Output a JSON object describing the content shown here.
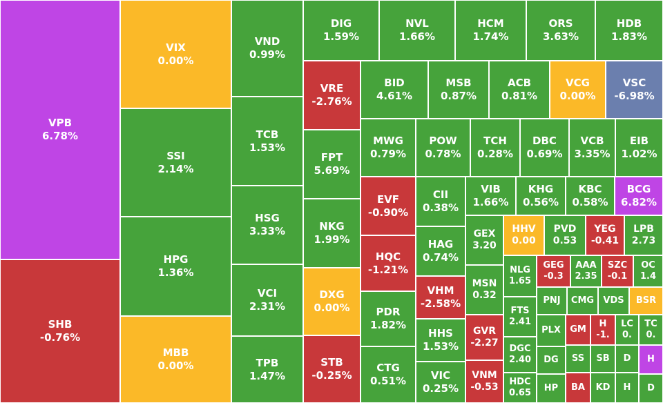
{
  "colors": {
    "up": "#46a33b",
    "down": "#c8383a",
    "ref": "#fbb928",
    "ceiling": "#bf45e5",
    "floor": "#6b7fae"
  },
  "chart_data": {
    "type": "treemap",
    "items": [
      {
        "symbol": "VPB",
        "value": "6.78%",
        "status": "ceiling"
      },
      {
        "symbol": "SHB",
        "value": "-0.76%",
        "status": "down"
      },
      {
        "symbol": "VIX",
        "value": "0.00%",
        "status": "ref"
      },
      {
        "symbol": "SSI",
        "value": "2.14%",
        "status": "up"
      },
      {
        "symbol": "HPG",
        "value": "1.36%",
        "status": "up"
      },
      {
        "symbol": "MBB",
        "value": "0.00%",
        "status": "ref"
      },
      {
        "symbol": "VND",
        "value": "0.99%",
        "status": "up"
      },
      {
        "symbol": "TCB",
        "value": "1.53%",
        "status": "up"
      },
      {
        "symbol": "HSG",
        "value": "3.33%",
        "status": "up"
      },
      {
        "symbol": "VCI",
        "value": "2.31%",
        "status": "up"
      },
      {
        "symbol": "TPB",
        "value": "1.47%",
        "status": "up"
      },
      {
        "symbol": "DIG",
        "value": "1.59%",
        "status": "up"
      },
      {
        "symbol": "NVL",
        "value": "1.66%",
        "status": "up"
      },
      {
        "symbol": "HCM",
        "value": "1.74%",
        "status": "up"
      },
      {
        "symbol": "ORS",
        "value": "3.63%",
        "status": "up"
      },
      {
        "symbol": "HDB",
        "value": "1.83%",
        "status": "up"
      },
      {
        "symbol": "VRE",
        "value": "-2.76%",
        "status": "down"
      },
      {
        "symbol": "FPT",
        "value": "5.69%",
        "status": "up"
      },
      {
        "symbol": "NKG",
        "value": "1.99%",
        "status": "up"
      },
      {
        "symbol": "DXG",
        "value": "0.00%",
        "status": "ref"
      },
      {
        "symbol": "STB",
        "value": "-0.25%",
        "status": "down"
      },
      {
        "symbol": "BID",
        "value": "4.61%",
        "status": "up"
      },
      {
        "symbol": "MSB",
        "value": "0.87%",
        "status": "up"
      },
      {
        "symbol": "ACB",
        "value": "0.81%",
        "status": "up"
      },
      {
        "symbol": "VCG",
        "value": "0.00%",
        "status": "ref"
      },
      {
        "symbol": "VSC",
        "value": "-6.98%",
        "status": "floor"
      },
      {
        "symbol": "MWG",
        "value": "0.79%",
        "status": "up"
      },
      {
        "symbol": "POW",
        "value": "0.78%",
        "status": "up"
      },
      {
        "symbol": "TCH",
        "value": "0.28%",
        "status": "up"
      },
      {
        "symbol": "DBC",
        "value": "0.69%",
        "status": "up"
      },
      {
        "symbol": "VCB",
        "value": "3.35%",
        "status": "up"
      },
      {
        "symbol": "EIB",
        "value": "1.02%",
        "status": "up"
      },
      {
        "symbol": "EVF",
        "value": "-0.90%",
        "status": "down"
      },
      {
        "symbol": "HQC",
        "value": "-1.21%",
        "status": "down"
      },
      {
        "symbol": "PDR",
        "value": "1.82%",
        "status": "up"
      },
      {
        "symbol": "CTG",
        "value": "0.51%",
        "status": "up"
      },
      {
        "symbol": "CII",
        "value": "0.38%",
        "status": "up"
      },
      {
        "symbol": "HAG",
        "value": "0.74%",
        "status": "up"
      },
      {
        "symbol": "VHM",
        "value": "-2.58%",
        "status": "down"
      },
      {
        "symbol": "HHS",
        "value": "1.53%",
        "status": "up"
      },
      {
        "symbol": "VIC",
        "value": "0.25%",
        "status": "up"
      },
      {
        "symbol": "VIB",
        "value": "1.66%",
        "status": "up"
      },
      {
        "symbol": "KHG",
        "value": "0.56%",
        "status": "up"
      },
      {
        "symbol": "KBC",
        "value": "0.58%",
        "status": "up"
      },
      {
        "symbol": "BCG",
        "value": "6.82%",
        "status": "ceiling"
      },
      {
        "symbol": "GEX",
        "value": "3.20",
        "status": "up"
      },
      {
        "symbol": "MSN",
        "value": "0.32",
        "status": "up"
      },
      {
        "symbol": "GVR",
        "value": "-2.27",
        "status": "down"
      },
      {
        "symbol": "VNM",
        "value": "-0.53",
        "status": "down"
      },
      {
        "symbol": "HHV",
        "value": "0.00",
        "status": "ref"
      },
      {
        "symbol": "PVD",
        "value": "0.53",
        "status": "up"
      },
      {
        "symbol": "YEG",
        "value": "-0.41",
        "status": "down"
      },
      {
        "symbol": "LPB",
        "value": "2.73",
        "status": "up"
      },
      {
        "symbol": "NLG",
        "value": "1.65",
        "status": "up"
      },
      {
        "symbol": "FTS",
        "value": "2.41",
        "status": "up"
      },
      {
        "symbol": "DGC",
        "value": "2.40",
        "status": "up"
      },
      {
        "symbol": "HDC",
        "value": "0.65",
        "status": "up"
      },
      {
        "symbol": "GEG",
        "value": "-0.3",
        "status": "down"
      },
      {
        "symbol": "AAA",
        "value": "2.35",
        "status": "up"
      },
      {
        "symbol": "SZC",
        "value": "-0.1",
        "status": "down"
      },
      {
        "symbol": "OC",
        "value": "1.4",
        "status": "up"
      },
      {
        "symbol": "PNJ",
        "value": "",
        "status": "up"
      },
      {
        "symbol": "CMG",
        "value": "",
        "status": "up"
      },
      {
        "symbol": "VDS",
        "value": "",
        "status": "up"
      },
      {
        "symbol": "BSR",
        "value": "",
        "status": "ref"
      },
      {
        "symbol": "PLX",
        "value": "",
        "status": "up"
      },
      {
        "symbol": "GM",
        "value": "",
        "status": "down"
      },
      {
        "symbol": "H",
        "value": "-1.",
        "status": "down"
      },
      {
        "symbol": "LC",
        "value": "0.",
        "status": "up"
      },
      {
        "symbol": "TC",
        "value": "0.",
        "status": "up"
      },
      {
        "symbol": "DG",
        "value": "",
        "status": "up"
      },
      {
        "symbol": "SS",
        "value": "",
        "status": "up"
      },
      {
        "symbol": "SB",
        "value": "",
        "status": "up"
      },
      {
        "symbol": "D",
        "value": "",
        "status": "up"
      },
      {
        "symbol": "H",
        "value": "",
        "status": "ceiling"
      },
      {
        "symbol": "HP",
        "value": "",
        "status": "up"
      },
      {
        "symbol": "BA",
        "value": "",
        "status": "down"
      },
      {
        "symbol": "KD",
        "value": "",
        "status": "up"
      },
      {
        "symbol": "H",
        "value": "",
        "status": "up"
      },
      {
        "symbol": "D",
        "value": "",
        "status": "up"
      }
    ]
  }
}
